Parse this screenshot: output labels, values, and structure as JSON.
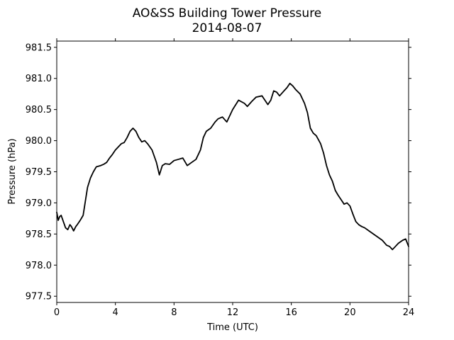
{
  "chart_data": {
    "type": "line",
    "title": "AO&SS Building Tower Pressure",
    "subtitle": "2014-08-07",
    "xlabel": "Time (UTC)",
    "ylabel": "Pressure (hPa)",
    "xlim": [
      0,
      24
    ],
    "ylim": [
      977.4,
      981.6
    ],
    "xticks": [
      0,
      4,
      8,
      12,
      16,
      20,
      24
    ],
    "yticks": [
      977.5,
      978.0,
      978.5,
      979.0,
      979.5,
      980.0,
      980.5,
      981.0,
      981.5
    ],
    "xtick_labels": [
      "0",
      "4",
      "8",
      "12",
      "16",
      "20",
      "24"
    ],
    "ytick_labels": [
      "977.5",
      "978.0",
      "978.5",
      "979.0",
      "979.5",
      "980.0",
      "980.5",
      "981.0",
      "981.5"
    ],
    "grid": false,
    "line_color": "#000000",
    "series": [
      {
        "x": [
          0.0,
          0.1,
          0.2,
          0.3,
          0.45,
          0.6,
          0.75,
          0.9,
          1.0,
          1.15,
          1.3,
          1.4,
          1.6,
          1.8,
          1.9,
          2.0,
          2.1,
          2.3,
          2.5,
          2.7,
          3.0,
          3.2,
          3.4,
          3.6,
          3.8,
          4.0,
          4.2,
          4.4,
          4.6,
          4.8,
          5.0,
          5.2,
          5.4,
          5.6,
          5.8,
          6.0,
          6.2,
          6.5,
          6.8,
          7.0,
          7.2,
          7.4,
          7.7,
          8.0,
          8.3,
          8.6,
          8.9,
          9.2,
          9.5,
          9.8,
          10.0,
          10.2,
          10.5,
          10.8,
          11.0,
          11.3,
          11.6,
          12.0,
          12.4,
          12.8,
          13.0,
          13.3,
          13.6,
          14.0,
          14.2,
          14.4,
          14.6,
          14.8,
          15.0,
          15.2,
          15.5,
          15.7,
          15.9,
          16.1,
          16.3,
          16.6,
          16.9,
          17.1,
          17.3,
          17.5,
          17.7,
          18.0,
          18.2,
          18.4,
          18.6,
          18.8,
          19.0,
          19.2,
          19.4,
          19.6,
          19.8,
          20.0,
          20.2,
          20.4,
          20.6,
          20.8,
          21.0,
          21.3,
          21.6,
          21.9,
          22.2,
          22.5,
          22.7,
          22.9,
          23.1,
          23.3,
          23.6,
          23.8,
          24.0
        ],
        "values": [
          978.85,
          978.72,
          978.78,
          978.8,
          978.7,
          978.6,
          978.57,
          978.65,
          978.62,
          978.55,
          978.62,
          978.65,
          978.72,
          978.8,
          978.95,
          979.1,
          979.25,
          979.4,
          979.5,
          979.58,
          979.6,
          979.62,
          979.65,
          979.72,
          979.78,
          979.85,
          979.9,
          979.95,
          979.97,
          980.05,
          980.15,
          980.2,
          980.15,
          980.05,
          979.98,
          980.0,
          979.95,
          979.85,
          979.65,
          979.45,
          979.6,
          979.63,
          979.62,
          979.68,
          979.7,
          979.72,
          979.6,
          979.65,
          979.7,
          979.85,
          980.05,
          980.15,
          980.2,
          980.3,
          980.35,
          980.38,
          980.3,
          980.5,
          980.65,
          980.6,
          980.55,
          980.63,
          980.7,
          980.72,
          980.65,
          980.58,
          980.65,
          980.8,
          980.78,
          980.72,
          980.8,
          980.85,
          980.92,
          980.88,
          980.82,
          980.75,
          980.6,
          980.45,
          980.2,
          980.12,
          980.08,
          979.95,
          979.8,
          979.6,
          979.45,
          979.35,
          979.2,
          979.12,
          979.05,
          978.98,
          979.0,
          978.95,
          978.82,
          978.7,
          978.65,
          978.62,
          978.6,
          978.55,
          978.5,
          978.45,
          978.4,
          978.32,
          978.3,
          978.25,
          978.3,
          978.35,
          978.4,
          978.42,
          978.3
        ]
      }
    ]
  }
}
